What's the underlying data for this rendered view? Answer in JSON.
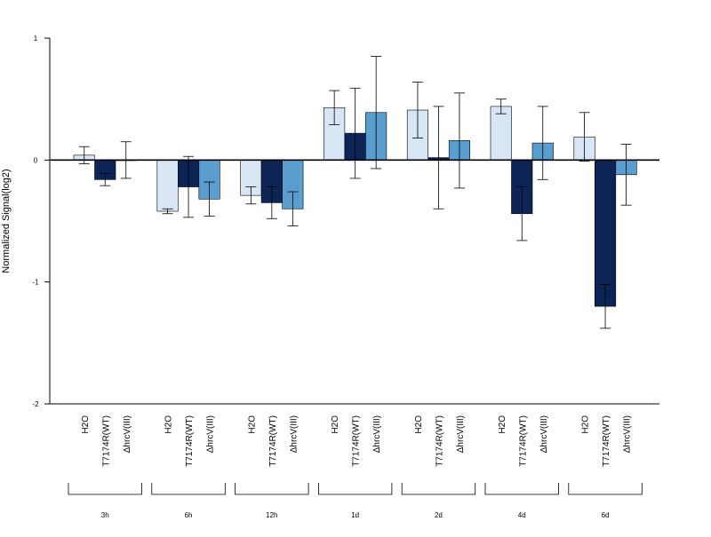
{
  "chart_data": {
    "type": "bar",
    "title": "",
    "xlabel": "",
    "ylabel": "Normalized Signal(log2)",
    "ylim": [
      -2,
      1
    ],
    "y_ticks": [
      "1",
      "0",
      "-1",
      "-2"
    ],
    "y_tick_values": [
      1,
      0,
      -1,
      -2
    ],
    "grid": false,
    "legend": "none",
    "categories": [
      "3h",
      "6h",
      "12h",
      "1d",
      "2d",
      "4d",
      "6d"
    ],
    "series": [
      {
        "name": "H2O",
        "color": "#d7e5f4",
        "values": [
          0.04,
          -0.42,
          -0.29,
          0.43,
          0.41,
          0.44,
          0.19
        ],
        "error": [
          0.07,
          0.02,
          0.07,
          0.14,
          0.23,
          0.06,
          0.2
        ]
      },
      {
        "name": "T7174R(WT)",
        "color": "#0d2457",
        "values": [
          -0.16,
          -0.22,
          -0.35,
          0.22,
          0.02,
          -0.44,
          -1.2
        ],
        "error": [
          0.05,
          0.25,
          0.13,
          0.37,
          0.42,
          0.22,
          0.18
        ]
      },
      {
        "name": "ΔhrcV(III)",
        "color": "#5a9ecf",
        "values": [
          0.0,
          -0.32,
          -0.4,
          0.39,
          0.16,
          0.14,
          -0.12
        ],
        "error": [
          0.15,
          0.14,
          0.14,
          0.46,
          0.39,
          0.3,
          0.25
        ]
      }
    ]
  }
}
